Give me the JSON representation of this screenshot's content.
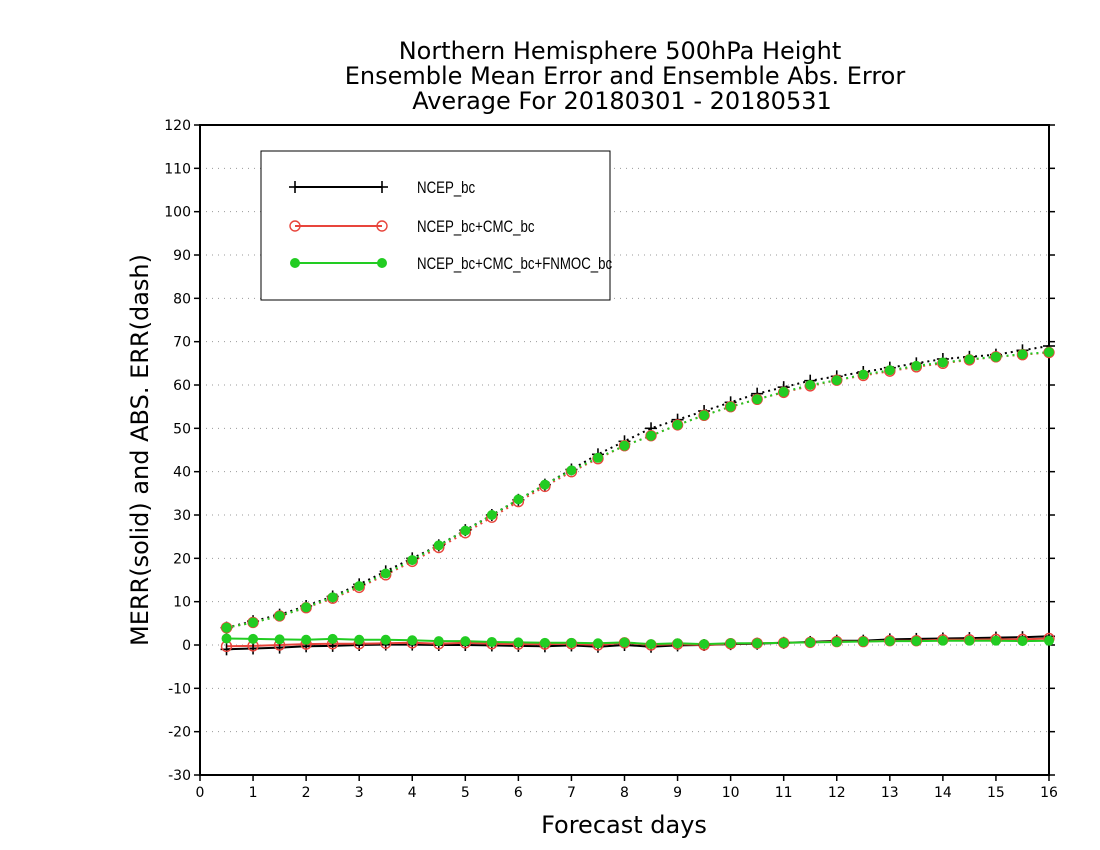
{
  "chart_data": {
    "type": "line",
    "title": [
      "Northern Hemisphere 500hPa Height",
      "Ensemble Mean Error and Ensemble Abs. Error",
      "Average For 20180301 - 20180531"
    ],
    "xlabel": "Forecast days",
    "ylabel": "MERR(solid) and ABS. ERR(dash)",
    "xlim": [
      0,
      16
    ],
    "ylim": [
      -30,
      120
    ],
    "xticks": [
      0,
      1,
      2,
      3,
      4,
      5,
      6,
      7,
      8,
      9,
      10,
      11,
      12,
      13,
      14,
      15,
      16
    ],
    "yticks": [
      -30,
      -20,
      -10,
      0,
      10,
      20,
      30,
      40,
      50,
      60,
      70,
      80,
      90,
      100,
      110,
      120
    ],
    "grid": true,
    "legend_position": "top-left",
    "x": [
      0.5,
      1,
      1.5,
      2,
      2.5,
      3,
      3.5,
      4,
      4.5,
      5,
      5.5,
      6,
      6.5,
      7,
      7.5,
      8,
      8.5,
      9,
      9.5,
      10,
      10.5,
      11,
      11.5,
      12,
      12.5,
      13,
      13.5,
      14,
      14.5,
      15,
      15.5,
      16
    ],
    "series": [
      {
        "name": "NCEP_bc",
        "color": "#000000",
        "marker": "plus",
        "merr": [
          -1.0,
          -0.8,
          -0.6,
          -0.3,
          -0.2,
          0.0,
          0.1,
          0.1,
          0.0,
          0.0,
          -0.1,
          -0.2,
          -0.3,
          -0.1,
          -0.4,
          0.0,
          -0.4,
          -0.1,
          0.0,
          0.2,
          0.3,
          0.5,
          0.7,
          1.0,
          1.0,
          1.3,
          1.4,
          1.5,
          1.6,
          1.7,
          1.8,
          2.0
        ],
        "abs_err": [
          4.0,
          5.5,
          7.0,
          9.0,
          11.2,
          14.0,
          17.0,
          20.0,
          23.0,
          26.5,
          30.0,
          33.5,
          37.0,
          40.5,
          44.0,
          47.0,
          50.0,
          52.0,
          54.0,
          56.0,
          58.0,
          59.5,
          61.0,
          62.0,
          63.0,
          64.0,
          65.0,
          66.0,
          66.5,
          67.0,
          68.0,
          69.0
        ]
      },
      {
        "name": "NCEP_bc+CMC_bc",
        "color": "#e8453c",
        "marker": "open-circle",
        "merr": [
          -0.3,
          -0.2,
          0.0,
          0.2,
          0.3,
          0.3,
          0.4,
          0.5,
          0.3,
          0.5,
          0.3,
          0.2,
          0.2,
          0.3,
          0.0,
          0.5,
          0.0,
          0.2,
          0.0,
          0.3,
          0.4,
          0.5,
          0.6,
          0.8,
          0.8,
          1.0,
          1.0,
          1.2,
          1.2,
          1.3,
          1.3,
          1.5
        ],
        "abs_err": [
          4.0,
          5.2,
          6.7,
          8.6,
          10.8,
          13.3,
          16.2,
          19.3,
          22.5,
          25.9,
          29.5,
          33.1,
          36.6,
          40.0,
          43.0,
          46.0,
          48.3,
          50.8,
          53.0,
          55.0,
          56.7,
          58.3,
          59.8,
          61.1,
          62.2,
          63.2,
          64.2,
          65.0,
          65.8,
          66.5,
          67.0,
          67.5
        ]
      },
      {
        "name": "NCEP_bc+CMC_bc+FNMOC_bc",
        "color": "#22cc22",
        "marker": "filled-circle",
        "merr": [
          1.5,
          1.4,
          1.3,
          1.2,
          1.4,
          1.2,
          1.2,
          1.1,
          0.9,
          0.9,
          0.7,
          0.6,
          0.5,
          0.5,
          0.4,
          0.6,
          0.2,
          0.4,
          0.2,
          0.4,
          0.4,
          0.5,
          0.6,
          0.7,
          0.8,
          0.9,
          0.9,
          1.0,
          1.0,
          1.0,
          0.9,
          1.0
        ],
        "abs_err": [
          4.0,
          5.2,
          6.7,
          8.7,
          11.0,
          13.6,
          16.5,
          19.6,
          23.0,
          26.4,
          30.0,
          33.6,
          37.0,
          40.3,
          43.2,
          46.0,
          48.3,
          50.8,
          53.0,
          55.0,
          56.7,
          58.4,
          60.0,
          61.1,
          62.4,
          63.4,
          64.4,
          65.2,
          65.9,
          66.5,
          67.1,
          67.6
        ]
      }
    ]
  }
}
